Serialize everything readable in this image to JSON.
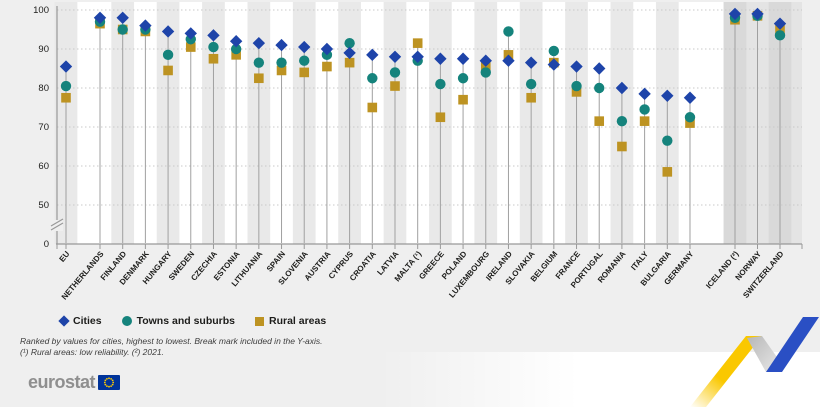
{
  "chart": {
    "y_axis": {
      "tick_labels": [
        100,
        90,
        80,
        70,
        60,
        50,
        0
      ],
      "break_mark": true
    },
    "footnote_line1": "Ranked by values for cities, highest to lowest. Break mark included in the Y-axis.",
    "footnote_line2": "(¹) Rural areas: low reliability. (²) 2021."
  },
  "chart_data": {
    "type": "scatter",
    "title": "",
    "xlabel": "",
    "ylabel": "",
    "ylim": [
      0,
      100
    ],
    "y_break": [
      0,
      50
    ],
    "grid": "horizontal dotted",
    "legend_position": "bottom-left",
    "categories": [
      "EU",
      "NETHERLANDS",
      "FINLAND",
      "DENMARK",
      "HUNGARY",
      "SWEDEN",
      "CZECHIA",
      "ESTONIA",
      "LITHUANIA",
      "SPAIN",
      "SLOVENIA",
      "AUSTRIA",
      "CYPRUS",
      "CROATIA",
      "LATVIA",
      "MALTA (¹)",
      "GREECE",
      "POLAND",
      "LUXEMBOURG",
      "IRELAND",
      "SLOVAKIA",
      "BELGIUM",
      "FRANCE",
      "PORTUGAL",
      "ROMANIA",
      "ITALY",
      "BULGARIA",
      "GERMANY",
      "ICELAND (²)",
      "NORWAY",
      "SWITZERLAND"
    ],
    "groups": {
      "eu_aggregate": [
        0
      ],
      "member_states": "1-27",
      "efta": [
        28,
        29,
        30
      ]
    },
    "series": [
      {
        "name": "Cities",
        "marker": "diamond",
        "color": "#1e44a9",
        "values": [
          85.5,
          98,
          98,
          96,
          94.5,
          94,
          93.5,
          92,
          91.5,
          91,
          90.5,
          90,
          89,
          88.5,
          88,
          88,
          87.5,
          87.5,
          87,
          87,
          86.5,
          86,
          85.5,
          85,
          80,
          78.5,
          78,
          77.5,
          99,
          99,
          96.5
        ]
      },
      {
        "name": "Towns and suburbs",
        "marker": "circle",
        "color": "#15837c",
        "values": [
          80.5,
          97,
          95,
          95,
          88.5,
          92.5,
          90.5,
          90,
          86.5,
          86.5,
          87,
          88.5,
          91.5,
          82.5,
          84,
          87,
          81,
          82.5,
          84,
          94.5,
          81,
          89.5,
          80.5,
          80,
          71.5,
          74.5,
          66.5,
          72.5,
          98,
          98.5,
          93.5
        ]
      },
      {
        "name": "Rural areas",
        "marker": "square",
        "color": "#bd9322",
        "values": [
          77.5,
          96.5,
          95,
          94.5,
          84.5,
          90.5,
          87.5,
          88.5,
          82.5,
          84.5,
          84,
          85.5,
          86.5,
          75,
          80.5,
          91.5,
          72.5,
          77,
          85.5,
          88.5,
          77.5,
          86.5,
          79,
          71.5,
          65,
          71.5,
          58.5,
          71,
          97.5,
          98.5,
          95
        ]
      }
    ]
  },
  "branding": {
    "logo_text": "eurostat",
    "flag_blue": "#003399",
    "flag_stars": "#ffcc00",
    "ribbon_yellow": "#fac800",
    "ribbon_gray": "#c6c6c6",
    "ribbon_blue": "#2a4fc4"
  }
}
